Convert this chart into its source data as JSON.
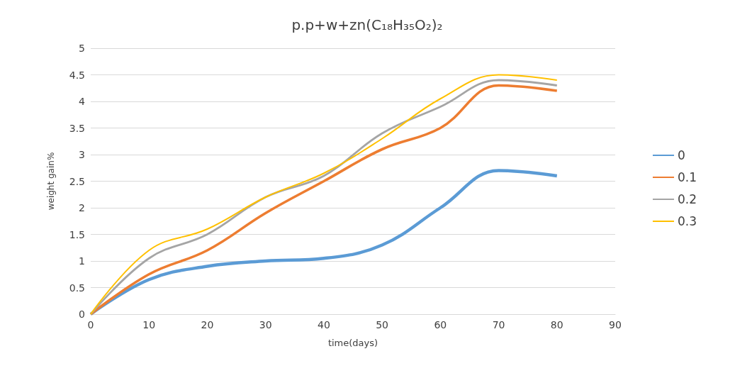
{
  "chart_data": {
    "type": "line",
    "title": "p.p+w+zn(C₁₈H₃₅O₂)₂",
    "xlabel": "time(days)",
    "ylabel": "weight gain%",
    "x": [
      0,
      10,
      20,
      30,
      40,
      50,
      60,
      70,
      80
    ],
    "series": [
      {
        "name": "0",
        "color": "#5b9bd5",
        "values": [
          0,
          0.65,
          0.9,
          1.0,
          1.05,
          1.3,
          2.0,
          2.7,
          2.6
        ]
      },
      {
        "name": "0.1",
        "color": "#ed7d31",
        "values": [
          0,
          0.75,
          1.2,
          1.9,
          2.5,
          3.1,
          3.5,
          4.3,
          4.2
        ]
      },
      {
        "name": "0.2",
        "color": "#a5a5a5",
        "values": [
          0,
          1.05,
          1.5,
          2.2,
          2.6,
          3.4,
          3.9,
          4.4,
          4.3
        ]
      },
      {
        "name": "0.3",
        "color": "#ffc000",
        "values": [
          0,
          1.2,
          1.6,
          2.2,
          2.65,
          3.3,
          4.05,
          4.5,
          4.4
        ]
      }
    ],
    "xlim": [
      0,
      90
    ],
    "xticks": [
      0,
      10,
      20,
      30,
      40,
      50,
      60,
      70,
      80,
      90
    ],
    "ylim": [
      0,
      5
    ],
    "yticks": [
      0,
      0.5,
      1,
      1.5,
      2,
      2.5,
      3,
      3.5,
      4,
      4.5,
      5
    ],
    "grid": "y",
    "legend": "right",
    "marker": "none",
    "line_style": "solid"
  }
}
